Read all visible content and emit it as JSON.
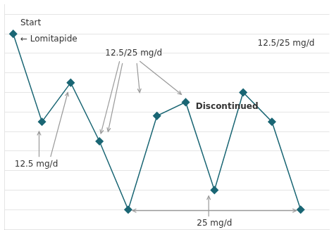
{
  "chart_data": {
    "type": "line",
    "x": [
      0,
      1,
      2,
      3,
      4,
      5,
      6,
      7,
      8,
      9,
      10
    ],
    "values": [
      10,
      5.5,
      7.5,
      4.5,
      1.0,
      5.8,
      6.5,
      2.0,
      7.0,
      5.5,
      1.0
    ],
    "color": "#1a6674",
    "marker": "diamond",
    "xlim": [
      -0.3,
      11.0
    ],
    "ylim": [
      0.0,
      11.5
    ],
    "yticks": [
      1,
      2,
      3,
      4,
      5,
      6,
      7,
      8,
      9,
      10,
      11
    ],
    "grid": true,
    "tick_labels": false,
    "annotations": [
      "Start",
      "← Lomitapide",
      "12.5 mg/d",
      "12.5/25 mg/d",
      "25 mg/d",
      "Discontinued",
      "12.5/25 mg/d"
    ]
  }
}
